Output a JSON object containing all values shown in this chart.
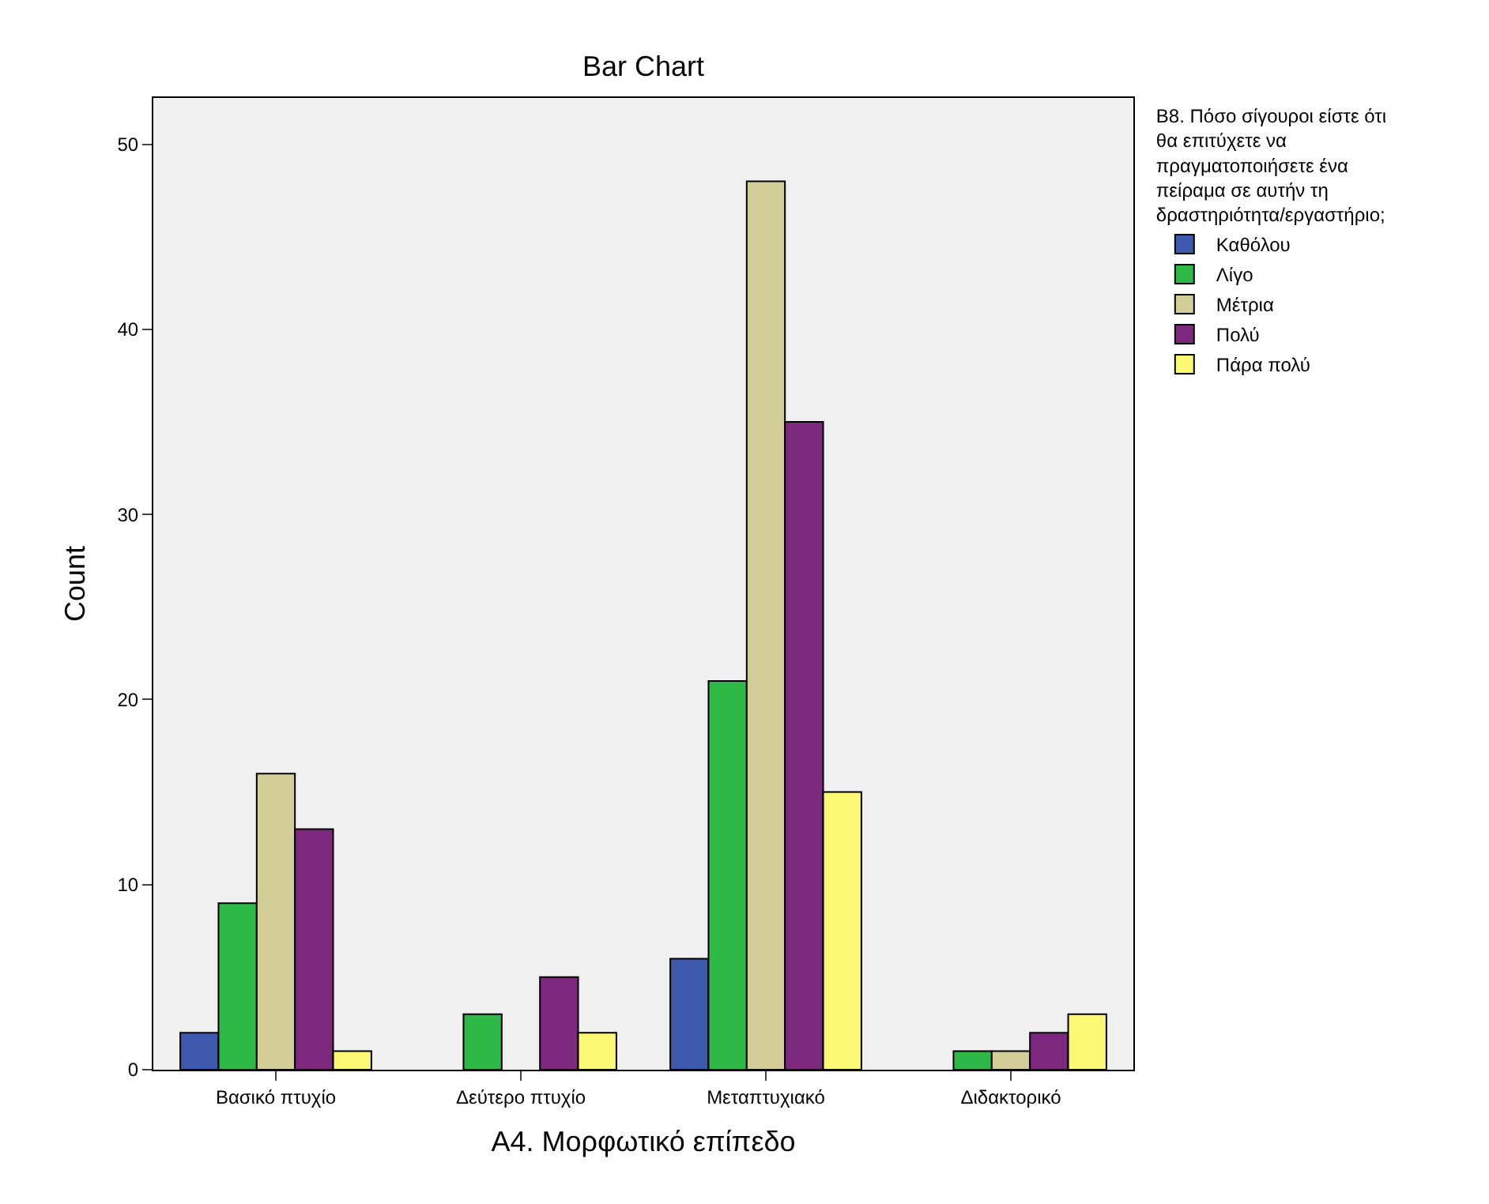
{
  "chart_data": {
    "type": "bar",
    "title": "Bar Chart",
    "xlabel": "Α4. Μορφωτικό επίπεδο",
    "ylabel": "Count",
    "legend_title": "Β8. Πόσο σίγουροι είστε ότι θα επιτύχετε να πραγματοποιήσετε ένα πείραμα σε αυτήν τη δραστηριότητα/εργαστήριο;",
    "categories": [
      "Βασικό πτυχίο",
      "Δεύτερο πτυχίο",
      "Μεταπτυχιακό",
      "Διδακτορικό"
    ],
    "series": [
      {
        "name": "Καθόλου",
        "color": "#3e58ac",
        "values": [
          2,
          null,
          6,
          null
        ]
      },
      {
        "name": "Λίγο",
        "color": "#2eb848",
        "values": [
          9,
          3,
          21,
          1
        ]
      },
      {
        "name": "Μέτρια",
        "color": "#d3ce97",
        "values": [
          16,
          null,
          48,
          1
        ]
      },
      {
        "name": "Πολύ",
        "color": "#7b287d",
        "values": [
          13,
          5,
          35,
          2
        ]
      },
      {
        "name": "Πάρα πολύ",
        "color": "#fbf873",
        "values": [
          1,
          2,
          15,
          3
        ]
      }
    ],
    "ylim": [
      0,
      52.5
    ],
    "yticks": [
      0,
      10,
      20,
      30,
      40,
      50
    ],
    "grid": false,
    "legend": "top right"
  }
}
